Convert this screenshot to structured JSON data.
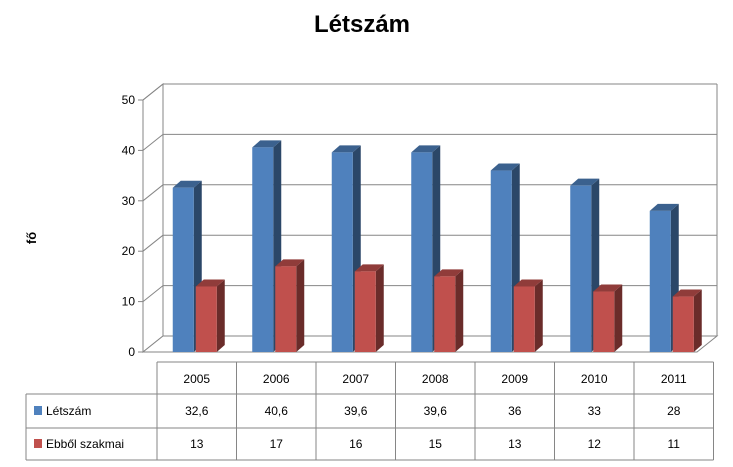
{
  "chart_data": {
    "type": "bar",
    "title": "Létszám",
    "ylabel": "fő",
    "xlabel": "",
    "categories": [
      "2005",
      "2006",
      "2007",
      "2008",
      "2009",
      "2010",
      "2011"
    ],
    "ylim": [
      0,
      50
    ],
    "yticks": [
      0,
      10,
      20,
      30,
      40,
      50
    ],
    "grid": true,
    "legend": "data-table",
    "series": [
      {
        "name": "Létszám",
        "values": [
          32.6,
          40.6,
          39.6,
          39.6,
          36,
          33,
          28
        ],
        "labels": [
          "32,6",
          "40,6",
          "39,6",
          "39,6",
          "36",
          "33",
          "28"
        ],
        "color": "#4F81BD"
      },
      {
        "name": "Ebből szakmai",
        "values": [
          13,
          17,
          16,
          15,
          13,
          12,
          11
        ],
        "labels": [
          "13",
          "17",
          "16",
          "15",
          "13",
          "12",
          "11"
        ],
        "color": "#C0504D"
      }
    ]
  }
}
